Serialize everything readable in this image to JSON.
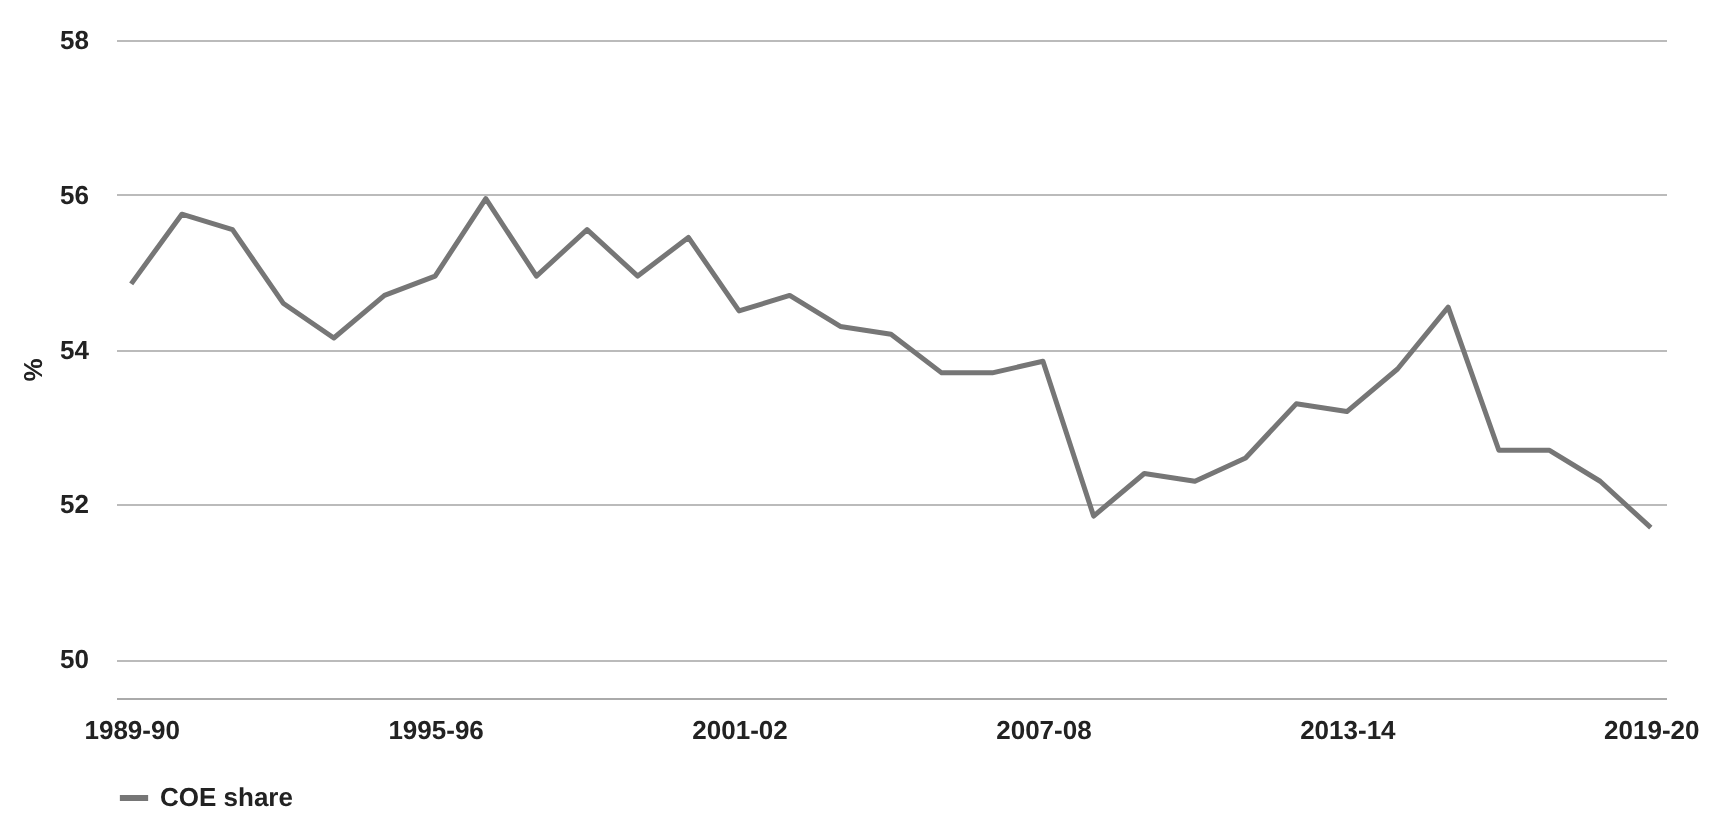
{
  "chart_data": {
    "type": "line",
    "ylabel": "%",
    "categories": [
      "1989-90",
      null,
      null,
      null,
      null,
      null,
      "1995-96",
      null,
      null,
      null,
      null,
      null,
      "2001-02",
      null,
      null,
      null,
      null,
      null,
      "2007-08",
      null,
      null,
      null,
      null,
      null,
      "2013-14",
      null,
      null,
      null,
      null,
      null,
      "2019-20"
    ],
    "series": [
      {
        "name": "COE share",
        "color": "#767676",
        "values": [
          54.85,
          55.75,
          55.55,
          54.6,
          54.15,
          54.7,
          54.95,
          55.95,
          54.95,
          55.55,
          54.95,
          55.45,
          54.5,
          54.7,
          54.3,
          54.2,
          53.7,
          53.7,
          53.85,
          51.85,
          52.4,
          52.3,
          52.6,
          53.3,
          53.2,
          53.75,
          54.55,
          52.7,
          52.7,
          52.3,
          51.7
        ]
      }
    ],
    "ylim": [
      49.5,
      58
    ],
    "yticks": [
      50,
      52,
      54,
      56,
      58
    ],
    "grid": "y",
    "legend": "bottom",
    "marker": "none",
    "line_style": "solid"
  }
}
